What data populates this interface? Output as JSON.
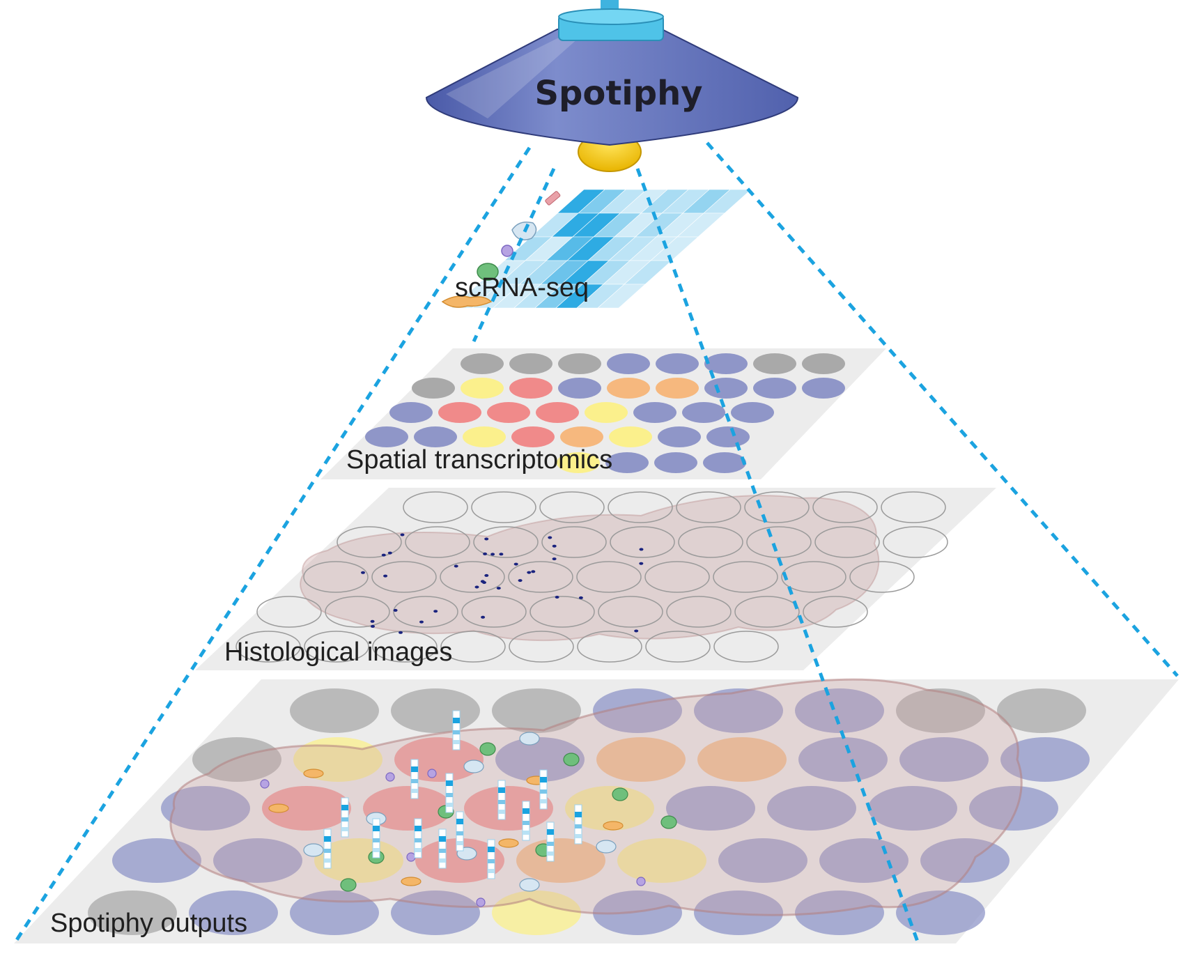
{
  "lamp": {
    "title": "Spotiphy"
  },
  "layers": [
    {
      "id": "scrna",
      "label": "scRNA-seq"
    },
    {
      "id": "spatial",
      "label": "Spatial transcriptomics"
    },
    {
      "id": "histology",
      "label": "Histological images"
    },
    {
      "id": "outputs",
      "label": "Spotiphy outputs"
    }
  ],
  "colors": {
    "lamp_shade": "#5b6cb4",
    "lamp_cap": "#4fc3e8",
    "bulb": "#f2c200",
    "beam": "#1ba3e0",
    "plane": "#ececec",
    "spot_gray": "#a9a9a9",
    "spot_blue": "#8f96c8",
    "spot_red": "#f08a8a",
    "spot_yellow": "#fbf08c",
    "spot_orange": "#f6b87e",
    "tissue": "#c9a0a0",
    "heatmap_dark": "#1aa3e0",
    "heatmap_light": "#cdebf7",
    "nucleus": "#1a237e"
  }
}
